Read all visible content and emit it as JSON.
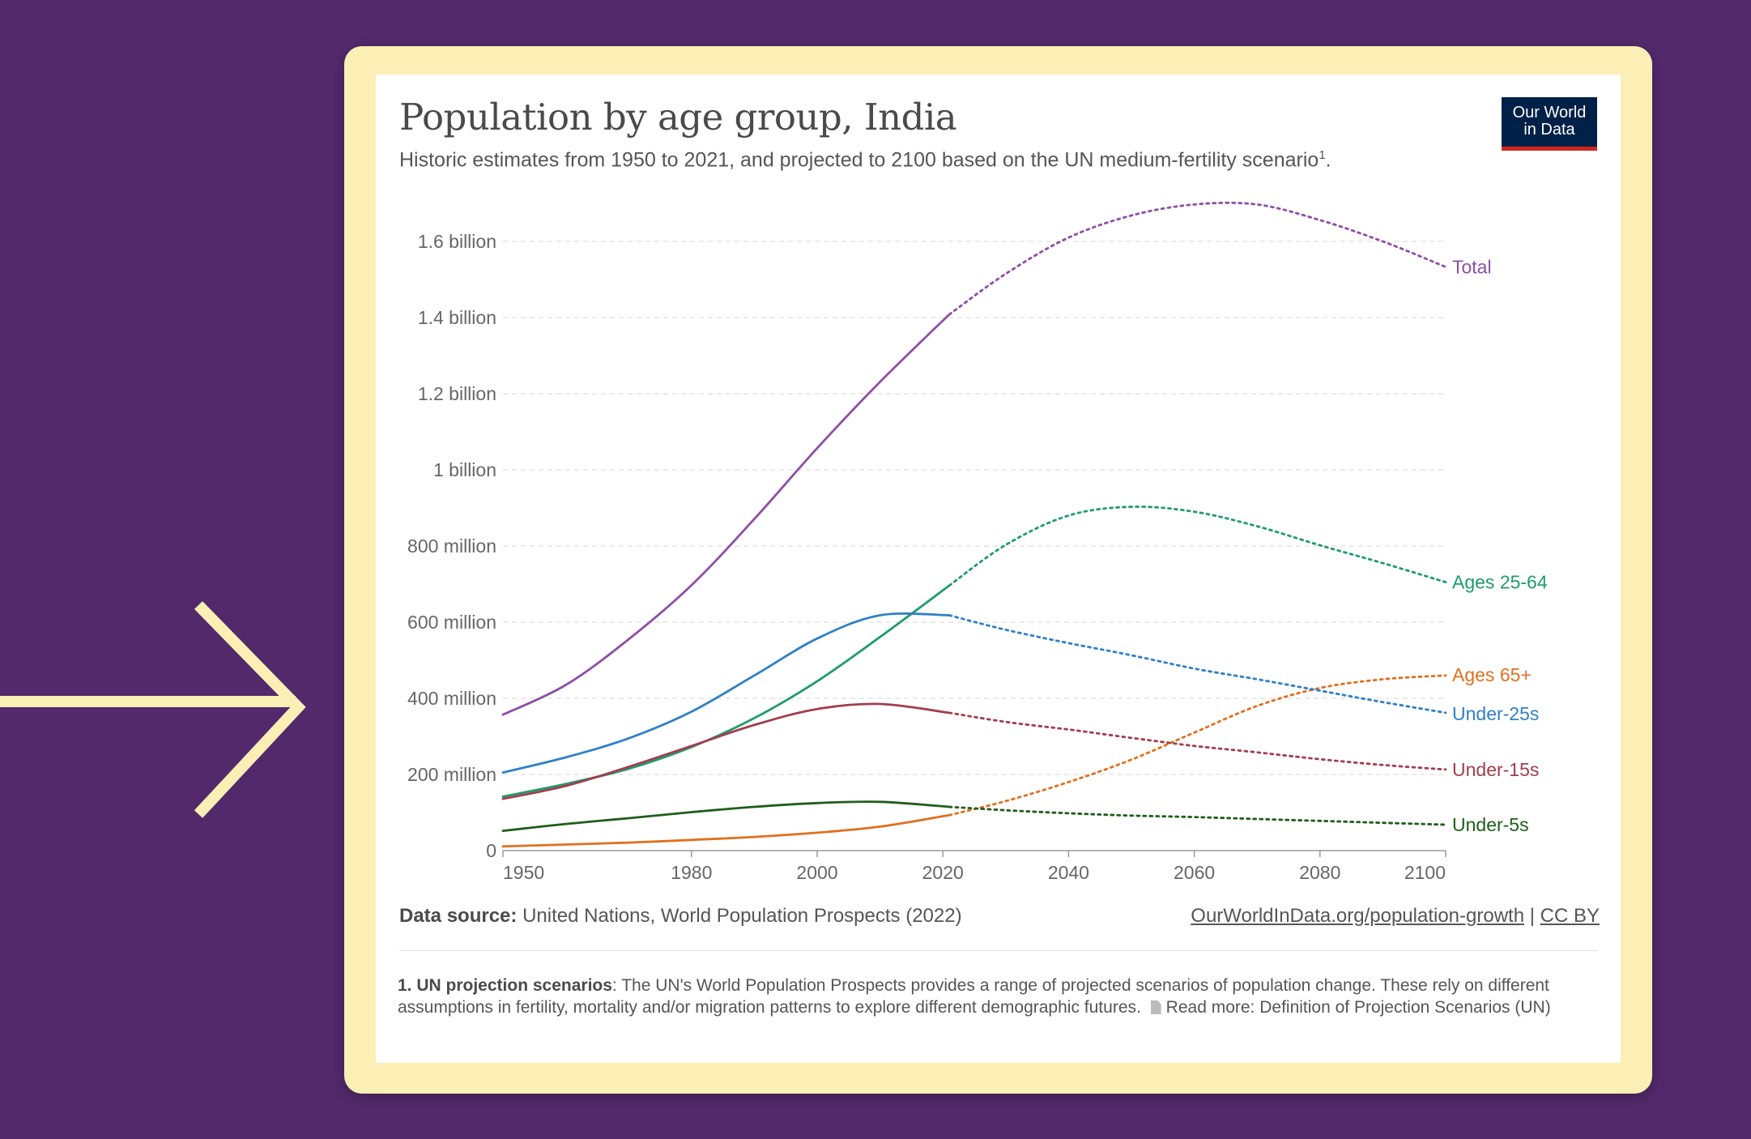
{
  "chart": {
    "title": "Population by age group, India",
    "subtitle": "Historic estimates from 1950 to 2021, and projected to 2100 based on the UN medium-fertility scenario",
    "subtitle_ref": "1",
    "subtitle_end": ".",
    "logo_line1": "Our World",
    "logo_line2": "in Data"
  },
  "footer": {
    "source_label": "Data source:",
    "source_text": "United Nations, World Population Prospects (2022)",
    "link_text": "OurWorldInData.org/population-growth",
    "link_sep": "|",
    "license": "CC BY",
    "footnote_label": "1. UN projection scenarios",
    "footnote_text": ": The UN's World Population Prospects provides a range of projected scenarios of population change. These rely on different assumptions in fertility, mortality and/or migration patterns to explore different demographic futures.",
    "footnote_read_more": "Read more: Definition of Projection Scenarios (UN)"
  },
  "colors": {
    "background": "#52296b",
    "frame": "#fbefb5",
    "arrow": "#fbefb5",
    "total": "#8e4fa6",
    "ages_25_64": "#1e9c6a",
    "ages_65_plus": "#e0701f",
    "under_25s": "#2f80c8",
    "under_15s": "#a23d4e",
    "under_5s": "#1f5e1a"
  },
  "icons": {
    "arrow": "right-arrow-icon",
    "document": "document-icon"
  },
  "chart_data": {
    "type": "line",
    "x_ticks": [
      1950,
      1980,
      2000,
      2020,
      2040,
      2060,
      2080,
      2100
    ],
    "y_ticks": [
      {
        "value": 0,
        "label": "0"
      },
      {
        "value": 200000000,
        "label": "200 million"
      },
      {
        "value": 400000000,
        "label": "400 million"
      },
      {
        "value": 600000000,
        "label": "600 million"
      },
      {
        "value": 800000000,
        "label": "800 million"
      },
      {
        "value": 1000000000,
        "label": "1 billion"
      },
      {
        "value": 1200000000,
        "label": "1.2 billion"
      },
      {
        "value": 1400000000,
        "label": "1.4 billion"
      },
      {
        "value": 1600000000,
        "label": "1.6 billion"
      }
    ],
    "xlim": [
      1950,
      2100
    ],
    "ylim": [
      0,
      1700000000
    ],
    "projection_start": 2021,
    "grid": "horizontal dashed",
    "series": [
      {
        "name": "Total",
        "color_key": "total",
        "x": [
          1950,
          1960,
          1970,
          1980,
          1990,
          2000,
          2010,
          2021,
          2030,
          2040,
          2050,
          2060,
          2070,
          2080,
          2090,
          2100
        ],
        "y": [
          357000000,
          435000000,
          555000000,
          697000000,
          871000000,
          1057000000,
          1231000000,
          1408000000,
          1515000000,
          1610000000,
          1668000000,
          1697000000,
          1697000000,
          1656000000,
          1600000000,
          1533000000
        ]
      },
      {
        "name": "Ages 25-64",
        "color_key": "ages_25_64",
        "x": [
          1950,
          1960,
          1970,
          1980,
          1990,
          2000,
          2010,
          2021,
          2030,
          2040,
          2050,
          2060,
          2070,
          2080,
          2090,
          2100
        ],
        "y": [
          142000000,
          175000000,
          215000000,
          272000000,
          348000000,
          445000000,
          561000000,
          696000000,
          803000000,
          880000000,
          903000000,
          890000000,
          852000000,
          802000000,
          755000000,
          705000000
        ]
      },
      {
        "name": "Ages 65+",
        "color_key": "ages_65_plus",
        "x": [
          1950,
          1960,
          1970,
          1980,
          1990,
          2000,
          2010,
          2021,
          2030,
          2040,
          2050,
          2060,
          2070,
          2080,
          2090,
          2100
        ],
        "y": [
          11000000,
          16000000,
          21000000,
          28000000,
          36000000,
          47000000,
          63000000,
          93000000,
          130000000,
          180000000,
          239000000,
          310000000,
          380000000,
          427000000,
          450000000,
          460000000
        ]
      },
      {
        "name": "Under-25s",
        "color_key": "under_25s",
        "x": [
          1950,
          1960,
          1970,
          1980,
          1990,
          2000,
          2010,
          2021,
          2030,
          2040,
          2050,
          2060,
          2070,
          2080,
          2090,
          2100
        ],
        "y": [
          205000000,
          245000000,
          295000000,
          365000000,
          460000000,
          557000000,
          618000000,
          618000000,
          580000000,
          545000000,
          513000000,
          478000000,
          450000000,
          420000000,
          390000000,
          362000000
        ]
      },
      {
        "name": "Under-15s",
        "color_key": "under_15s",
        "x": [
          1950,
          1960,
          1970,
          1980,
          1990,
          2000,
          2010,
          2021,
          2030,
          2040,
          2050,
          2060,
          2070,
          2080,
          2090,
          2100
        ],
        "y": [
          136000000,
          170000000,
          220000000,
          275000000,
          330000000,
          372000000,
          385000000,
          362000000,
          338000000,
          318000000,
          296000000,
          275000000,
          258000000,
          240000000,
          225000000,
          213000000
        ]
      },
      {
        "name": "Under-5s",
        "color_key": "under_5s",
        "x": [
          1950,
          1960,
          1970,
          1980,
          1990,
          2000,
          2010,
          2021,
          2030,
          2040,
          2050,
          2060,
          2070,
          2080,
          2090,
          2100
        ],
        "y": [
          52000000,
          70000000,
          85000000,
          101000000,
          115000000,
          125000000,
          128000000,
          115000000,
          106000000,
          98000000,
          92000000,
          88000000,
          83000000,
          78000000,
          73000000,
          68000000
        ]
      }
    ]
  }
}
